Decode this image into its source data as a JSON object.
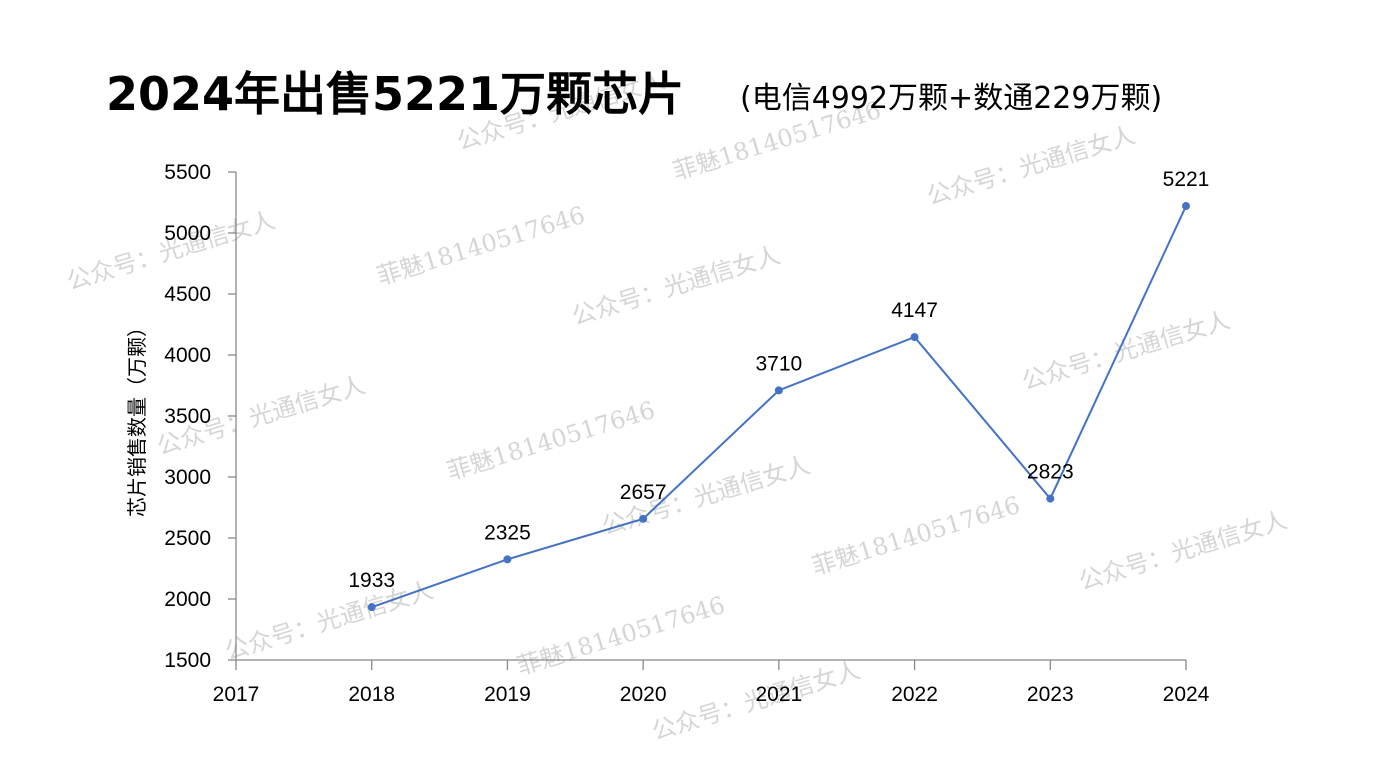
{
  "title": {
    "main": "2024年出售5221万颗芯片",
    "sub": "(电信4992万颗+数通229万颗)"
  },
  "watermarks": [
    "公众号：光通信女人",
    "菲魅18140517646"
  ],
  "colors": {
    "line": "#4472C4",
    "axis": "#888888",
    "watermark": "#c8c8c8"
  },
  "chart_data": {
    "type": "line",
    "title": "2024年出售5221万颗芯片",
    "subtitle": "(电信4992万颗+数通229万颗)",
    "xlabel": "",
    "ylabel": "芯片销售数量（万颗）",
    "categories": [
      "2017",
      "2018",
      "2019",
      "2020",
      "2021",
      "2022",
      "2023",
      "2024"
    ],
    "series": [
      {
        "x": [
          "2018",
          "2019",
          "2020",
          "2021",
          "2022",
          "2023",
          "2024"
        ],
        "values": [
          1933,
          2325,
          2657,
          3710,
          4147,
          2823,
          5221
        ]
      }
    ],
    "data_labels": [
      "1933",
      "2325",
      "2657",
      "3710",
      "4147",
      "2823",
      "5221"
    ],
    "yticks": [
      "1500",
      "2000",
      "2500",
      "3000",
      "3500",
      "4000",
      "4500",
      "5000",
      "5500"
    ],
    "ylim": [
      1500,
      5500
    ],
    "grid": false,
    "legend": "none"
  }
}
